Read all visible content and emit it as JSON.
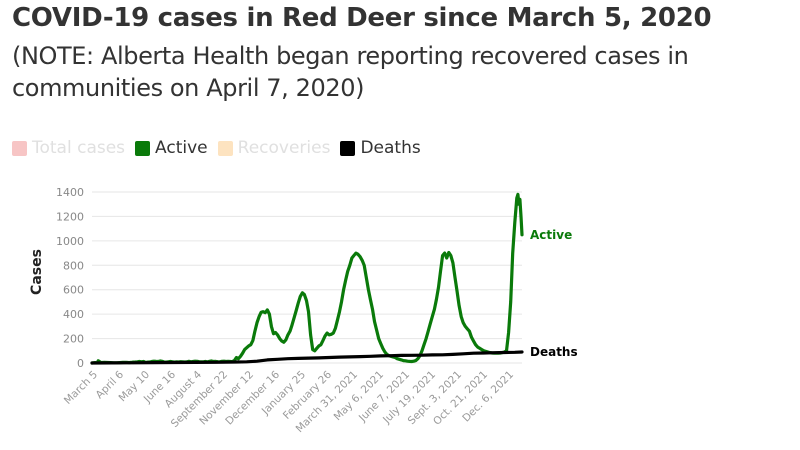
{
  "title": "COVID-19 cases in Red Deer since March 5, 2020",
  "subtitle": "(NOTE: Alberta Health began reporting recovered cases in communities on April 7, 2020)",
  "legend": [
    {
      "label": "Total cases",
      "color": "#f7c5c5",
      "active": false
    },
    {
      "label": "Active",
      "color": "#0a7a0a",
      "active": true
    },
    {
      "label": "Recoveries",
      "color": "#fde3c0",
      "active": false
    },
    {
      "label": "Deaths",
      "color": "#000000",
      "active": true
    }
  ],
  "chart_data": {
    "type": "line",
    "title": "COVID-19 cases in Red Deer since March 5, 2020",
    "ylabel": "Cases",
    "ylim": [
      0,
      1400
    ],
    "yticks": [
      0,
      200,
      400,
      600,
      800,
      1000,
      1200,
      1400
    ],
    "grid": true,
    "legend_position": "top-left",
    "xticks": [
      "March 5",
      "April 6",
      "May 10",
      "June 16",
      "August 4",
      "September 22",
      "November 12",
      "December 16",
      "January 25",
      "February 26",
      "March 31, 2021",
      "May 6, 2021",
      "June 7, 2021",
      "July 19, 2021",
      "Sept. 3, 2021",
      "Oct. 21, 2021",
      "Dec. 6, 2021"
    ],
    "series": [
      {
        "name": "Active",
        "color": "#0a7a0a",
        "end_label": "Active",
        "values": [
          [
            0,
            0
          ],
          [
            3,
            3
          ],
          [
            5,
            2
          ],
          [
            6,
            18
          ],
          [
            7,
            14
          ],
          [
            8,
            6
          ],
          [
            10,
            4
          ],
          [
            12,
            5
          ],
          [
            15,
            4
          ],
          [
            18,
            3
          ],
          [
            21,
            2
          ],
          [
            24,
            2
          ],
          [
            27,
            3
          ],
          [
            30,
            5
          ],
          [
            33,
            6
          ],
          [
            36,
            3
          ],
          [
            38,
            5
          ],
          [
            40,
            7
          ],
          [
            42,
            8
          ],
          [
            44,
            10
          ],
          [
            46,
            12
          ],
          [
            48,
            10
          ],
          [
            50,
            12
          ],
          [
            52,
            5
          ],
          [
            54,
            7
          ],
          [
            56,
            8
          ],
          [
            58,
            12
          ],
          [
            60,
            15
          ],
          [
            62,
            13
          ],
          [
            64,
            12
          ],
          [
            66,
            16
          ],
          [
            68,
            14
          ],
          [
            70,
            8
          ],
          [
            72,
            7
          ],
          [
            74,
            10
          ],
          [
            76,
            12
          ],
          [
            78,
            10
          ],
          [
            80,
            7
          ],
          [
            82,
            9
          ],
          [
            84,
            8
          ],
          [
            86,
            11
          ],
          [
            88,
            10
          ],
          [
            90,
            8
          ],
          [
            92,
            9
          ],
          [
            94,
            14
          ],
          [
            96,
            10
          ],
          [
            98,
            12
          ],
          [
            100,
            15
          ],
          [
            102,
            14
          ],
          [
            104,
            11
          ],
          [
            106,
            9
          ],
          [
            108,
            10
          ],
          [
            110,
            12
          ],
          [
            112,
            9
          ],
          [
            114,
            14
          ],
          [
            116,
            16
          ],
          [
            118,
            12
          ],
          [
            120,
            13
          ],
          [
            122,
            11
          ],
          [
            124,
            10
          ],
          [
            126,
            14
          ],
          [
            128,
            15
          ],
          [
            130,
            12
          ],
          [
            132,
            14
          ],
          [
            134,
            12
          ],
          [
            136,
            11
          ],
          [
            138,
            20
          ],
          [
            140,
            45
          ],
          [
            142,
            35
          ],
          [
            144,
            55
          ],
          [
            146,
            80
          ],
          [
            148,
            110
          ],
          [
            150,
            125
          ],
          [
            152,
            140
          ],
          [
            154,
            150
          ],
          [
            156,
            185
          ],
          [
            158,
            260
          ],
          [
            160,
            330
          ],
          [
            162,
            380
          ],
          [
            164,
            415
          ],
          [
            166,
            420
          ],
          [
            168,
            412
          ],
          [
            170,
            435
          ],
          [
            172,
            400
          ],
          [
            174,
            300
          ],
          [
            176,
            240
          ],
          [
            178,
            250
          ],
          [
            180,
            230
          ],
          [
            182,
            200
          ],
          [
            184,
            180
          ],
          [
            186,
            170
          ],
          [
            188,
            190
          ],
          [
            190,
            230
          ],
          [
            192,
            260
          ],
          [
            194,
            310
          ],
          [
            196,
            370
          ],
          [
            198,
            430
          ],
          [
            200,
            490
          ],
          [
            202,
            545
          ],
          [
            204,
            575
          ],
          [
            206,
            560
          ],
          [
            208,
            510
          ],
          [
            210,
            420
          ],
          [
            212,
            230
          ],
          [
            214,
            110
          ],
          [
            216,
            100
          ],
          [
            218,
            120
          ],
          [
            220,
            140
          ],
          [
            222,
            150
          ],
          [
            224,
            185
          ],
          [
            226,
            220
          ],
          [
            228,
            245
          ],
          [
            230,
            230
          ],
          [
            232,
            235
          ],
          [
            234,
            245
          ],
          [
            236,
            285
          ],
          [
            238,
            350
          ],
          [
            240,
            420
          ],
          [
            242,
            500
          ],
          [
            244,
            600
          ],
          [
            246,
            680
          ],
          [
            248,
            750
          ],
          [
            250,
            800
          ],
          [
            252,
            860
          ],
          [
            254,
            880
          ],
          [
            256,
            900
          ],
          [
            258,
            890
          ],
          [
            260,
            870
          ],
          [
            262,
            840
          ],
          [
            264,
            800
          ],
          [
            266,
            700
          ],
          [
            268,
            600
          ],
          [
            270,
            520
          ],
          [
            272,
            440
          ],
          [
            274,
            340
          ],
          [
            276,
            270
          ],
          [
            278,
            200
          ],
          [
            280,
            160
          ],
          [
            282,
            120
          ],
          [
            284,
            90
          ],
          [
            286,
            70
          ],
          [
            288,
            60
          ],
          [
            290,
            55
          ],
          [
            292,
            50
          ],
          [
            294,
            45
          ],
          [
            296,
            35
          ],
          [
            298,
            30
          ],
          [
            300,
            25
          ],
          [
            302,
            20
          ],
          [
            304,
            18
          ],
          [
            306,
            15
          ],
          [
            308,
            13
          ],
          [
            310,
            12
          ],
          [
            312,
            15
          ],
          [
            314,
            20
          ],
          [
            316,
            35
          ],
          [
            318,
            60
          ],
          [
            320,
            100
          ],
          [
            322,
            150
          ],
          [
            324,
            200
          ],
          [
            326,
            260
          ],
          [
            328,
            320
          ],
          [
            330,
            380
          ],
          [
            332,
            440
          ],
          [
            334,
            520
          ],
          [
            336,
            620
          ],
          [
            338,
            750
          ],
          [
            340,
            880
          ],
          [
            342,
            900
          ],
          [
            344,
            860
          ],
          [
            346,
            905
          ],
          [
            348,
            880
          ],
          [
            350,
            820
          ],
          [
            352,
            700
          ],
          [
            354,
            590
          ],
          [
            356,
            470
          ],
          [
            358,
            380
          ],
          [
            360,
            330
          ],
          [
            362,
            300
          ],
          [
            364,
            280
          ],
          [
            366,
            260
          ],
          [
            368,
            210
          ],
          [
            370,
            180
          ],
          [
            372,
            150
          ],
          [
            374,
            130
          ],
          [
            376,
            120
          ],
          [
            378,
            110
          ],
          [
            380,
            100
          ],
          [
            382,
            95
          ],
          [
            384,
            90
          ],
          [
            386,
            85
          ],
          [
            388,
            82
          ],
          [
            390,
            80
          ],
          [
            392,
            80
          ],
          [
            394,
            80
          ],
          [
            396,
            82
          ],
          [
            398,
            85
          ],
          [
            400,
            90
          ],
          [
            402,
            100
          ],
          [
            404,
            250
          ],
          [
            406,
            500
          ],
          [
            408,
            900
          ],
          [
            410,
            1150
          ],
          [
            412,
            1350
          ],
          [
            413,
            1380
          ],
          [
            414,
            1300
          ],
          [
            415,
            1340
          ],
          [
            416,
            1200
          ],
          [
            417,
            1050
          ]
        ]
      },
      {
        "name": "Deaths",
        "color": "#000000",
        "end_label": "Deaths",
        "values": [
          [
            0,
            0
          ],
          [
            20,
            1
          ],
          [
            40,
            2
          ],
          [
            60,
            3
          ],
          [
            80,
            4
          ],
          [
            100,
            5
          ],
          [
            120,
            6
          ],
          [
            140,
            8
          ],
          [
            150,
            10
          ],
          [
            160,
            15
          ],
          [
            170,
            25
          ],
          [
            180,
            30
          ],
          [
            190,
            35
          ],
          [
            200,
            38
          ],
          [
            210,
            40
          ],
          [
            220,
            42
          ],
          [
            230,
            45
          ],
          [
            240,
            48
          ],
          [
            250,
            50
          ],
          [
            260,
            52
          ],
          [
            270,
            55
          ],
          [
            280,
            58
          ],
          [
            290,
            60
          ],
          [
            300,
            62
          ],
          [
            310,
            63
          ],
          [
            320,
            64
          ],
          [
            330,
            66
          ],
          [
            340,
            67
          ],
          [
            350,
            70
          ],
          [
            360,
            75
          ],
          [
            370,
            80
          ],
          [
            380,
            82
          ],
          [
            390,
            84
          ],
          [
            400,
            86
          ],
          [
            410,
            88
          ],
          [
            417,
            90
          ]
        ]
      }
    ]
  }
}
